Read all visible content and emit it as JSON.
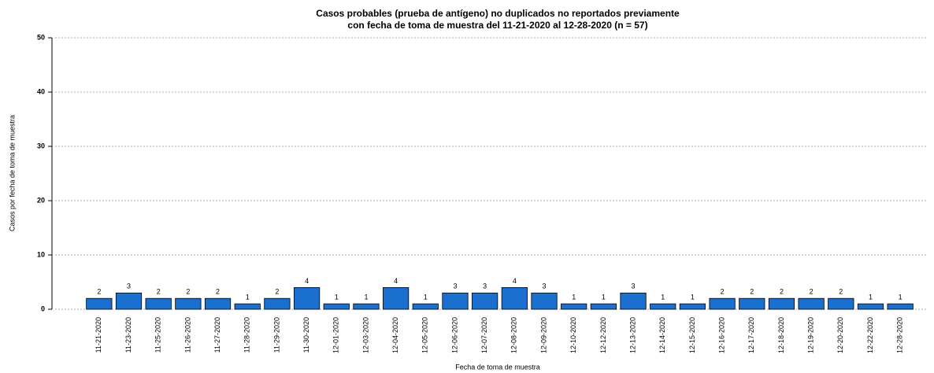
{
  "chart_data": {
    "type": "bar",
    "title": [
      "Casos probables (prueba de antígeno) no duplicados no reportados previamente",
      "con fecha de toma de muestra del 11-21-2020 al 12-28-2020 (n = 57)"
    ],
    "x_label": "Fecha de toma de muestra",
    "y_label": "Casos por fecha de toma de muestra",
    "categories": [
      "11-21-2020",
      "11-23-2020",
      "11-25-2020",
      "11-26-2020",
      "11-27-2020",
      "11-28-2020",
      "11-29-2020",
      "11-30-2020",
      "12-01-2020",
      "12-03-2020",
      "12-04-2020",
      "12-05-2020",
      "12-06-2020",
      "12-07-2020",
      "12-08-2020",
      "12-09-2020",
      "12-10-2020",
      "12-12-2020",
      "12-13-2020",
      "12-14-2020",
      "12-15-2020",
      "12-16-2020",
      "12-17-2020",
      "12-18-2020",
      "12-19-2020",
      "12-20-2020",
      "12-22-2020",
      "12-28-2020"
    ],
    "values": [
      2,
      3,
      2,
      2,
      2,
      1,
      2,
      4,
      1,
      1,
      4,
      1,
      3,
      3,
      4,
      3,
      1,
      1,
      3,
      1,
      1,
      2,
      2,
      2,
      2,
      2,
      1,
      1
    ],
    "color": "#1a6fcf",
    "ylim": [
      0,
      50
    ],
    "yticks": [
      0,
      10,
      20,
      30,
      40,
      50
    ],
    "grid": true
  }
}
